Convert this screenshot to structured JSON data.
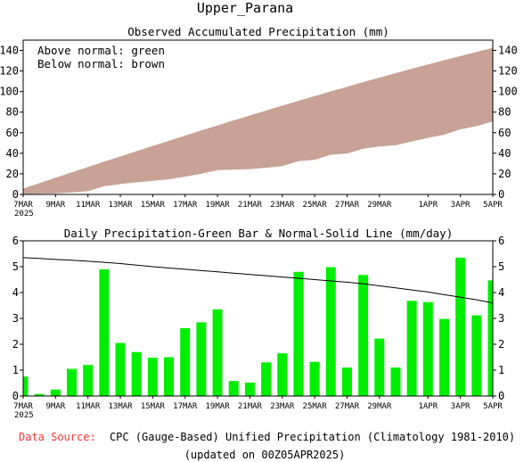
{
  "page": {
    "title": "Upper_Parana",
    "footer": {
      "source_label": "Data Source:",
      "source_text": "CPC (Gauge-Based) Unified Precipitation (Climatology 1981-2010)",
      "updated": "(updated on 00Z05APR2025)"
    }
  },
  "colors": {
    "above_normal": "#00cc00",
    "below_normal": "#c8a296",
    "bar": "#00ee00",
    "source_label": "#ff3333"
  },
  "chart_data": [
    {
      "type": "area",
      "title": "Observed Accumulated Precipitation (mm)",
      "annotations": [
        "Above normal: green",
        "Below normal: brown"
      ],
      "year_label": "2025",
      "ylim": [
        0,
        150
      ],
      "yticks": [
        0,
        20,
        40,
        60,
        80,
        100,
        120,
        140
      ],
      "x_tick_labels": [
        {
          "day": 0,
          "label": "7MAR"
        },
        {
          "day": 2,
          "label": "9MAR"
        },
        {
          "day": 4,
          "label": "11MAR"
        },
        {
          "day": 6,
          "label": "13MAR"
        },
        {
          "day": 8,
          "label": "15MAR"
        },
        {
          "day": 10,
          "label": "17MAR"
        },
        {
          "day": 12,
          "label": "19MAR"
        },
        {
          "day": 14,
          "label": "21MAR"
        },
        {
          "day": 16,
          "label": "23MAR"
        },
        {
          "day": 18,
          "label": "25MAR"
        },
        {
          "day": 20,
          "label": "27MAR"
        },
        {
          "day": 22,
          "label": "29MAR"
        },
        {
          "day": 25,
          "label": "1APR"
        },
        {
          "day": 27,
          "label": "3APR"
        },
        {
          "day": 29,
          "label": "5APR"
        }
      ],
      "series": [
        {
          "key": "observed",
          "values": [
            0.8,
            0.9,
            1.2,
            2.2,
            3.4,
            8.3,
            10.3,
            12.0,
            13.5,
            15.0,
            17.6,
            20.4,
            23.8,
            24.4,
            24.9,
            26.2,
            27.8,
            32.6,
            33.9,
            38.9,
            40.0,
            44.7,
            46.9,
            48.0,
            51.7,
            55.3,
            58.3,
            63.6,
            66.7,
            71.2
          ]
        },
        {
          "key": "normal",
          "values": [
            5.4,
            10.7,
            16.0,
            21.2,
            26.4,
            31.6,
            36.7,
            41.8,
            46.9,
            51.9,
            56.9,
            61.9,
            66.8,
            71.7,
            76.5,
            81.3,
            86.0,
            90.7,
            95.3,
            99.9,
            104.4,
            108.9,
            113.3,
            117.6,
            121.9,
            126.1,
            130.2,
            134.3,
            138.3,
            142.2
          ]
        }
      ]
    },
    {
      "type": "bar",
      "title": "Daily Precipitation-Green Bar & Normal-Solid Line (mm/day)",
      "year_label": "2025",
      "ylim": [
        0,
        6
      ],
      "yticks": [
        0,
        1,
        2,
        3,
        4,
        5,
        6
      ],
      "x_tick_labels": [
        {
          "day": 0,
          "label": "7MAR"
        },
        {
          "day": 2,
          "label": "9MAR"
        },
        {
          "day": 4,
          "label": "11MAR"
        },
        {
          "day": 6,
          "label": "13MAR"
        },
        {
          "day": 8,
          "label": "15MAR"
        },
        {
          "day": 10,
          "label": "17MAR"
        },
        {
          "day": 12,
          "label": "19MAR"
        },
        {
          "day": 14,
          "label": "21MAR"
        },
        {
          "day": 16,
          "label": "23MAR"
        },
        {
          "day": 18,
          "label": "25MAR"
        },
        {
          "day": 20,
          "label": "27MAR"
        },
        {
          "day": 22,
          "label": "29MAR"
        },
        {
          "day": 25,
          "label": "1APR"
        },
        {
          "day": 27,
          "label": "3APR"
        },
        {
          "day": 29,
          "label": "5APR"
        }
      ],
      "series": [
        {
          "key": "daily",
          "values": [
            0.75,
            0.08,
            0.25,
            1.05,
            1.2,
            4.9,
            2.05,
            1.7,
            1.48,
            1.5,
            2.62,
            2.85,
            3.35,
            0.58,
            0.52,
            1.3,
            1.65,
            4.8,
            1.32,
            4.98,
            1.1,
            4.68,
            2.22,
            1.1,
            3.68,
            3.63,
            2.98,
            5.35,
            3.12,
            4.47
          ]
        },
        {
          "key": "normal",
          "values": [
            5.35,
            5.32,
            5.28,
            5.25,
            5.21,
            5.17,
            5.12,
            5.06,
            5.0,
            4.95,
            4.9,
            4.85,
            4.8,
            4.75,
            4.7,
            4.65,
            4.6,
            4.55,
            4.5,
            4.45,
            4.4,
            4.34,
            4.26,
            4.18,
            4.1,
            4.02,
            3.92,
            3.82,
            3.72,
            3.6
          ]
        }
      ]
    }
  ]
}
